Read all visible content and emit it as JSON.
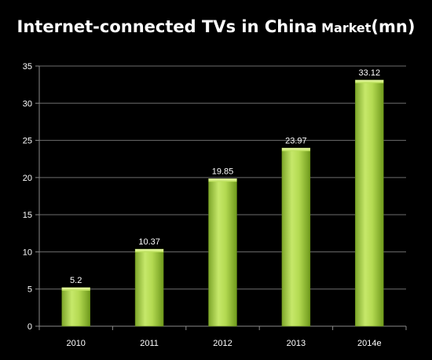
{
  "chart_data": {
    "type": "bar",
    "title": "Internet-connected TVs in China",
    "subtitle": "Market",
    "unit": "(mn)",
    "categories": [
      "2010",
      "2011",
      "2012",
      "2013",
      "2014e"
    ],
    "values": [
      5.2,
      10.37,
      19.85,
      23.97,
      33.12
    ],
    "data_labels": [
      "5.2",
      "10.37",
      "19.85",
      "23.97",
      "33.12"
    ],
    "ylim": [
      0,
      35
    ],
    "yticks": [
      0,
      5,
      10,
      15,
      20,
      25,
      30,
      35
    ],
    "xlabel": "",
    "ylabel": "",
    "grid": true,
    "legend": "none",
    "colors": {
      "background": "#000000",
      "bar_light": "#d9f07a",
      "bar_mid": "#a8d045",
      "bar_dark": "#6f9a1c",
      "axis": "#8a8a8a",
      "gridline": "#6e6e6e",
      "text": "#ffffff"
    }
  }
}
